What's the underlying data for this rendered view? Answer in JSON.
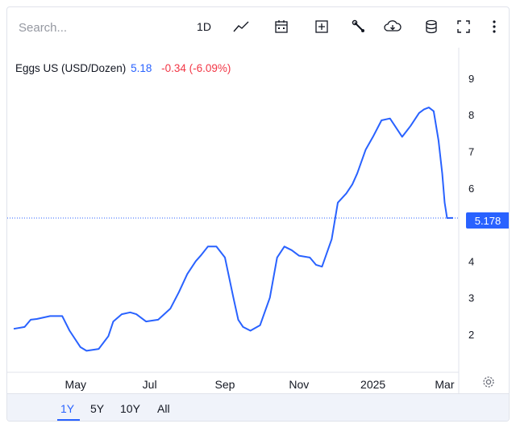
{
  "toolbar": {
    "search_placeholder": "Search...",
    "interval_label": "1D",
    "icons": [
      "chart-type-icon",
      "calendar-icon",
      "compare-add-icon",
      "settings-wrench-icon",
      "cloud-download-icon",
      "database-icon",
      "fullscreen-icon",
      "more-menu-icon"
    ]
  },
  "legend": {
    "symbol": "Eggs US (USD/Dozen)",
    "price": "5.18",
    "change": "-0.34 (-6.09%)"
  },
  "price_badge": "5.178",
  "range_buttons": [
    "1Y",
    "5Y",
    "10Y",
    "All"
  ],
  "active_range": "1Y",
  "colors": {
    "line": "#2962ff",
    "negative": "#f23645",
    "bar": "#f0f3fa"
  },
  "chart_data": {
    "type": "line",
    "series": [
      {
        "name": "Eggs US (USD/Dozen)",
        "x": [
          "2024-03-11",
          "2024-03-20",
          "2024-03-25",
          "2024-03-30",
          "2024-04-10",
          "2024-04-20",
          "2024-04-26",
          "2024-05-05",
          "2024-05-10",
          "2024-05-20",
          "2024-05-28",
          "2024-06-01",
          "2024-06-08",
          "2024-06-15",
          "2024-06-20",
          "2024-06-28",
          "2024-07-08",
          "2024-07-18",
          "2024-07-25",
          "2024-08-01",
          "2024-08-08",
          "2024-08-12",
          "2024-08-18",
          "2024-08-25",
          "2024-09-01",
          "2024-09-08",
          "2024-09-12",
          "2024-09-16",
          "2024-09-22",
          "2024-09-30",
          "2024-10-08",
          "2024-10-14",
          "2024-10-20",
          "2024-10-26",
          "2024-11-01",
          "2024-11-10",
          "2024-11-15",
          "2024-11-20",
          "2024-11-28",
          "2024-12-03",
          "2024-12-10",
          "2024-12-15",
          "2024-12-19",
          "2024-12-26",
          "2025-01-01",
          "2025-01-08",
          "2025-01-15",
          "2025-01-25",
          "2025-02-01",
          "2025-02-08",
          "2025-02-12",
          "2025-02-16",
          "2025-02-20",
          "2025-02-24",
          "2025-02-27",
          "2025-03-01",
          "2025-03-03",
          "2025-03-06",
          "2025-03-08"
        ],
        "y": [
          2.15,
          2.2,
          2.4,
          2.42,
          2.5,
          2.5,
          2.1,
          1.65,
          1.55,
          1.6,
          1.95,
          2.35,
          2.55,
          2.6,
          2.55,
          2.35,
          2.4,
          2.7,
          3.15,
          3.65,
          4.0,
          4.15,
          4.4,
          4.4,
          4.1,
          3.0,
          2.4,
          2.2,
          2.1,
          2.25,
          3.0,
          4.1,
          4.4,
          4.3,
          4.15,
          4.1,
          3.9,
          3.85,
          4.6,
          5.6,
          5.85,
          6.1,
          6.4,
          7.05,
          7.4,
          7.85,
          7.9,
          7.4,
          7.7,
          8.05,
          8.15,
          8.2,
          8.1,
          7.3,
          6.4,
          5.6,
          5.178,
          5.18,
          5.18
        ]
      }
    ],
    "x_ticks": [
      "May",
      "Jul",
      "Sep",
      "Nov",
      "2025",
      "Mar"
    ],
    "y_ticks": [
      2,
      3,
      4,
      5,
      6,
      7,
      8,
      9
    ],
    "ylim": [
      1,
      9.3
    ],
    "last_value": 5.178,
    "grid": false,
    "legend_position": "top-left"
  }
}
